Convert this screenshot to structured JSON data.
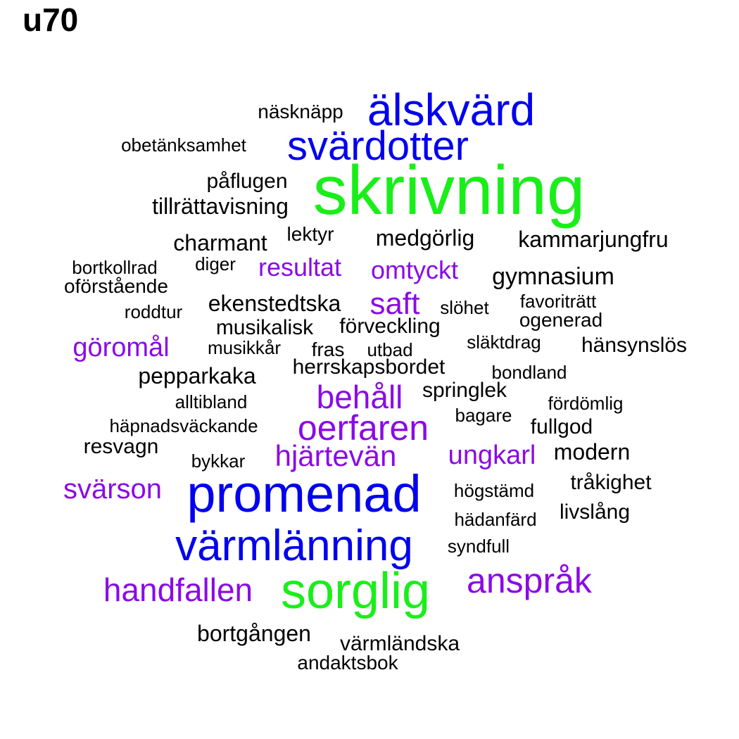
{
  "title": "u70",
  "palette": {
    "black": "#000000",
    "purple": "#8b0ae6",
    "blue": "#0000ee",
    "green": "#1aee1a"
  },
  "words": [
    {
      "text": "skrivning",
      "color": "green"
    },
    {
      "text": "sorglig",
      "color": "green"
    },
    {
      "text": "promenad",
      "color": "blue"
    },
    {
      "text": "värmlänning",
      "color": "blue"
    },
    {
      "text": "älskvärd",
      "color": "blue"
    },
    {
      "text": "svärdotter",
      "color": "blue"
    },
    {
      "text": "oerfaren",
      "color": "purple"
    },
    {
      "text": "behåll",
      "color": "purple"
    },
    {
      "text": "anspråk",
      "color": "purple"
    },
    {
      "text": "handfallen",
      "color": "purple"
    },
    {
      "text": "hjärtevän",
      "color": "purple"
    },
    {
      "text": "svärson",
      "color": "purple"
    },
    {
      "text": "ungkarl",
      "color": "purple"
    },
    {
      "text": "göromål",
      "color": "purple"
    },
    {
      "text": "saft",
      "color": "purple"
    },
    {
      "text": "omtyckt",
      "color": "purple"
    },
    {
      "text": "resultat",
      "color": "purple"
    },
    {
      "text": "näsknäpp",
      "color": "black"
    },
    {
      "text": "obetänksamhet",
      "color": "black"
    },
    {
      "text": "påflugen",
      "color": "black"
    },
    {
      "text": "tillrättavisning",
      "color": "black"
    },
    {
      "text": "charmant",
      "color": "black"
    },
    {
      "text": "lektyr",
      "color": "black"
    },
    {
      "text": "medgörlig",
      "color": "black"
    },
    {
      "text": "kammarjungfru",
      "color": "black"
    },
    {
      "text": "bortkollrad",
      "color": "black"
    },
    {
      "text": "diger",
      "color": "black"
    },
    {
      "text": "gymnasium",
      "color": "black"
    },
    {
      "text": "oförstående",
      "color": "black"
    },
    {
      "text": "ekenstedtska",
      "color": "black"
    },
    {
      "text": "favoriträtt",
      "color": "black"
    },
    {
      "text": "roddtur",
      "color": "black"
    },
    {
      "text": "slöhet",
      "color": "black"
    },
    {
      "text": "ogenerad",
      "color": "black"
    },
    {
      "text": "musikalisk",
      "color": "black"
    },
    {
      "text": "förveckling",
      "color": "black"
    },
    {
      "text": "släktdrag",
      "color": "black"
    },
    {
      "text": "hänsynslös",
      "color": "black"
    },
    {
      "text": "musikkår",
      "color": "black"
    },
    {
      "text": "fras",
      "color": "black"
    },
    {
      "text": "utbad",
      "color": "black"
    },
    {
      "text": "herrskapsbordet",
      "color": "black"
    },
    {
      "text": "bondland",
      "color": "black"
    },
    {
      "text": "pepparkaka",
      "color": "black"
    },
    {
      "text": "springlek",
      "color": "black"
    },
    {
      "text": "alltibland",
      "color": "black"
    },
    {
      "text": "fördömlig",
      "color": "black"
    },
    {
      "text": "bagare",
      "color": "black"
    },
    {
      "text": "häpnadsväckande",
      "color": "black"
    },
    {
      "text": "fullgod",
      "color": "black"
    },
    {
      "text": "resvagn",
      "color": "black"
    },
    {
      "text": "modern",
      "color": "black"
    },
    {
      "text": "bykkar",
      "color": "black"
    },
    {
      "text": "tråkighet",
      "color": "black"
    },
    {
      "text": "högstämd",
      "color": "black"
    },
    {
      "text": "livslång",
      "color": "black"
    },
    {
      "text": "hädanfärd",
      "color": "black"
    },
    {
      "text": "syndfull",
      "color": "black"
    },
    {
      "text": "bortgången",
      "color": "black"
    },
    {
      "text": "värmländska",
      "color": "black"
    },
    {
      "text": "andaktsbok",
      "color": "black"
    }
  ]
}
